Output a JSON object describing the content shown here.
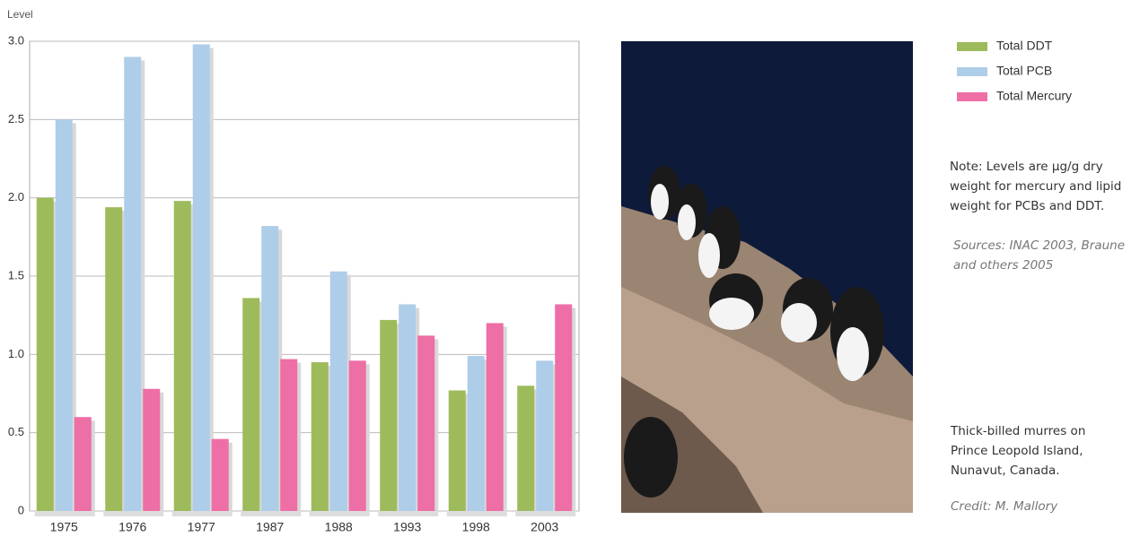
{
  "chart_data": {
    "type": "bar",
    "y_label": "Level",
    "categories": [
      "1975",
      "1976",
      "1977",
      "1987",
      "1988",
      "1993",
      "1998",
      "2003"
    ],
    "series": [
      {
        "name": "Total DDT",
        "color": "#9dbb5b",
        "values": [
          2.0,
          1.94,
          1.98,
          1.36,
          0.95,
          1.22,
          0.77,
          0.8
        ]
      },
      {
        "name": "Total PCB",
        "color": "#aecde9",
        "values": [
          2.5,
          2.9,
          2.98,
          1.82,
          1.53,
          1.32,
          0.99,
          0.96
        ]
      },
      {
        "name": "Total Mercury",
        "color": "#ee6ea6",
        "values": [
          0.6,
          0.78,
          0.46,
          0.97,
          0.96,
          1.12,
          1.2,
          1.32
        ]
      }
    ],
    "ylim": [
      0,
      3
    ],
    "yticks": [
      0,
      0.5,
      {
        "value": 1,
        "label": "1.0"
      },
      1.5,
      {
        "value": 2,
        "label": "2.0"
      },
      2.5,
      {
        "value": 3,
        "label": "3.0"
      }
    ],
    "grid": true
  },
  "notes": {
    "note": "Note: Levels are µg/g dry weight for mercury and lipid weight for PCBs and DDT.",
    "sources": "Sources: INAC 2003, Braune and others 2005",
    "caption": "Thick-billed murres on Prince Leopold Island, Nunavut, Canada.",
    "credit": "Credit: M. Mallory"
  }
}
